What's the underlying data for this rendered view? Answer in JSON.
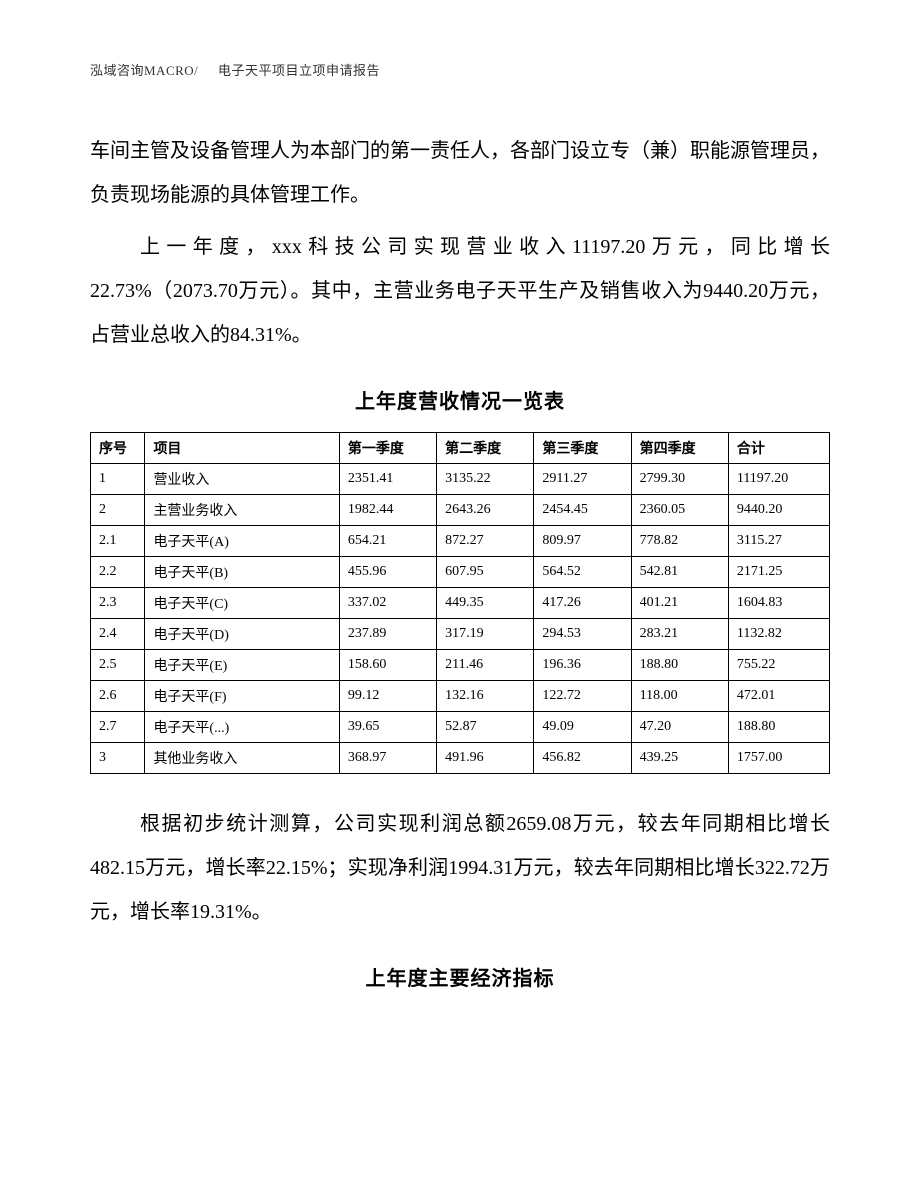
{
  "header": {
    "company": "泓域咨询MACRO/",
    "doc_title": "电子天平项目立项申请报告"
  },
  "paragraphs": {
    "p1": "车间主管及设备管理人为本部门的第一责任人，各部门设立专（兼）职能源管理员，负责现场能源的具体管理工作。",
    "p2": "上一年度，xxx科技公司实现营业收入11197.20万元，同比增长22.73%（2073.70万元）。其中，主营业务电子天平生产及销售收入为9440.20万元，占营业总收入的84.31%。",
    "p3": "根据初步统计测算，公司实现利润总额2659.08万元，较去年同期相比增长482.15万元，增长率22.15%；实现净利润1994.31万元，较去年同期相比增长322.72万元，增长率19.31%。"
  },
  "table1": {
    "title": "上年度营收情况一览表",
    "headers": {
      "idx": "序号",
      "item": "项目",
      "q1": "第一季度",
      "q2": "第二季度",
      "q3": "第三季度",
      "q4": "第四季度",
      "total": "合计"
    },
    "rows": [
      {
        "idx": "1",
        "item": "营业收入",
        "q1": "2351.41",
        "q2": "3135.22",
        "q3": "2911.27",
        "q4": "2799.30",
        "total": "11197.20"
      },
      {
        "idx": "2",
        "item": "主营业务收入",
        "q1": "1982.44",
        "q2": "2643.26",
        "q3": "2454.45",
        "q4": "2360.05",
        "total": "9440.20"
      },
      {
        "idx": "2.1",
        "item": "电子天平(A)",
        "q1": "654.21",
        "q2": "872.27",
        "q3": "809.97",
        "q4": "778.82",
        "total": "3115.27"
      },
      {
        "idx": "2.2",
        "item": "电子天平(B)",
        "q1": "455.96",
        "q2": "607.95",
        "q3": "564.52",
        "q4": "542.81",
        "total": "2171.25"
      },
      {
        "idx": "2.3",
        "item": "电子天平(C)",
        "q1": "337.02",
        "q2": "449.35",
        "q3": "417.26",
        "q4": "401.21",
        "total": "1604.83"
      },
      {
        "idx": "2.4",
        "item": "电子天平(D)",
        "q1": "237.89",
        "q2": "317.19",
        "q3": "294.53",
        "q4": "283.21",
        "total": "1132.82"
      },
      {
        "idx": "2.5",
        "item": "电子天平(E)",
        "q1": "158.60",
        "q2": "211.46",
        "q3": "196.36",
        "q4": "188.80",
        "total": "755.22"
      },
      {
        "idx": "2.6",
        "item": "电子天平(F)",
        "q1": "99.12",
        "q2": "132.16",
        "q3": "122.72",
        "q4": "118.00",
        "total": "472.01"
      },
      {
        "idx": "2.7",
        "item": "电子天平(...)",
        "q1": "39.65",
        "q2": "52.87",
        "q3": "49.09",
        "q4": "47.20",
        "total": "188.80"
      },
      {
        "idx": "3",
        "item": "其他业务收入",
        "q1": "368.97",
        "q2": "491.96",
        "q3": "456.82",
        "q4": "439.25",
        "total": "1757.00"
      }
    ]
  },
  "table2": {
    "title": "上年度主要经济指标"
  }
}
